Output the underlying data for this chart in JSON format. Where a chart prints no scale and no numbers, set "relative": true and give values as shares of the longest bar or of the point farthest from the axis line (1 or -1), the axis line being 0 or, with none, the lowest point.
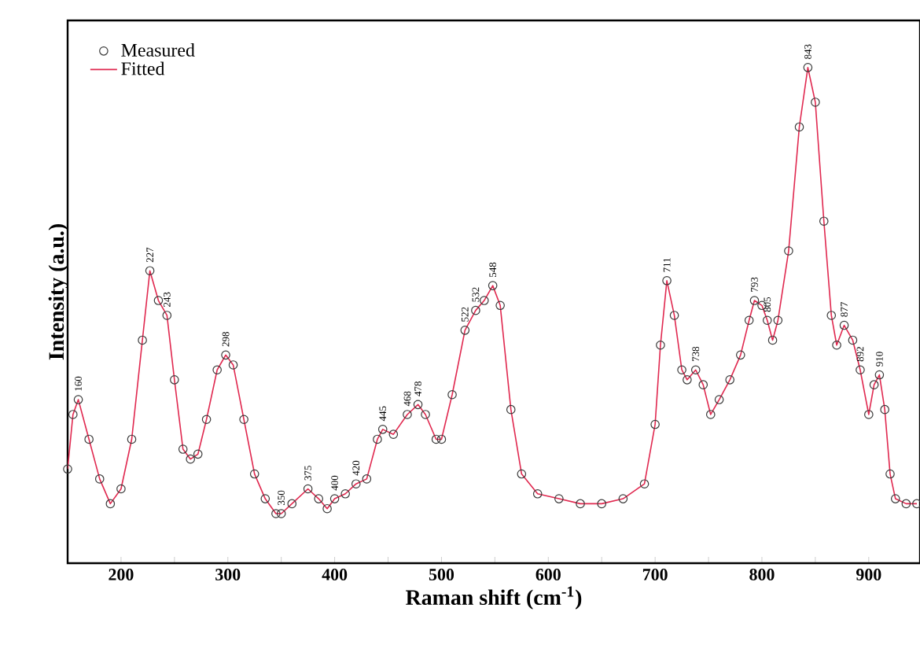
{
  "chart_data": {
    "type": "line",
    "relative": true,
    "xlabel": "Raman shift (cm$^{-1}$)",
    "ylabel": "Intensity (a.u.)",
    "xlim": [
      150,
      948
    ],
    "xticks": [
      200,
      {
        "value": 250,
        "label": null
      },
      300,
      {
        "value": 350,
        "label": null
      },
      400,
      {
        "value": 450,
        "label": null
      },
      500,
      {
        "value": 550,
        "label": null
      },
      600,
      {
        "value": 650,
        "label": null
      },
      700,
      {
        "value": 750,
        "label": null
      },
      800,
      {
        "value": 850,
        "label": null
      },
      900
    ],
    "legend": "top left",
    "series": [
      {
        "name": "Measured",
        "type": "scatter",
        "marker": "circle",
        "color": "#3a3a3a",
        "x": [
          150,
          155,
          160,
          170,
          180,
          190,
          200,
          210,
          220,
          227,
          235,
          243,
          250,
          258,
          265,
          272,
          280,
          290,
          298,
          305,
          315,
          325,
          335,
          345,
          350,
          360,
          375,
          385,
          393,
          400,
          410,
          420,
          430,
          440,
          445,
          455,
          468,
          478,
          485,
          495,
          500,
          510,
          522,
          532,
          540,
          548,
          555,
          565,
          575,
          590,
          610,
          630,
          650,
          670,
          690,
          700,
          705,
          711,
          718,
          725,
          730,
          738,
          745,
          752,
          760,
          770,
          780,
          788,
          793,
          800,
          805,
          810,
          815,
          825,
          835,
          843,
          850,
          858,
          865,
          870,
          877,
          885,
          892,
          900,
          905,
          910,
          915,
          920,
          925,
          935,
          945
        ],
        "values": [
          0.19,
          0.3,
          0.33,
          0.25,
          0.17,
          0.12,
          0.15,
          0.25,
          0.45,
          0.59,
          0.53,
          0.5,
          0.37,
          0.23,
          0.21,
          0.22,
          0.29,
          0.39,
          0.42,
          0.4,
          0.29,
          0.18,
          0.13,
          0.1,
          0.1,
          0.12,
          0.15,
          0.13,
          0.11,
          0.13,
          0.14,
          0.16,
          0.17,
          0.25,
          0.27,
          0.26,
          0.3,
          0.32,
          0.3,
          0.25,
          0.25,
          0.34,
          0.47,
          0.51,
          0.53,
          0.56,
          0.52,
          0.31,
          0.18,
          0.14,
          0.13,
          0.12,
          0.12,
          0.13,
          0.16,
          0.28,
          0.44,
          0.57,
          0.5,
          0.39,
          0.37,
          0.39,
          0.36,
          0.3,
          0.33,
          0.37,
          0.42,
          0.49,
          0.53,
          0.52,
          0.49,
          0.45,
          0.49,
          0.63,
          0.88,
          1,
          0.93,
          0.69,
          0.5,
          0.44,
          0.48,
          0.45,
          0.39,
          0.3,
          0.36,
          0.38,
          0.31,
          0.18,
          0.13,
          0.12,
          0.12
        ]
      },
      {
        "name": "Fitted",
        "type": "line",
        "marker": "none",
        "line_style": "solid",
        "color": "#e0284f",
        "x": [
          150,
          155,
          160,
          170,
          180,
          190,
          200,
          210,
          220,
          227,
          235,
          243,
          250,
          258,
          265,
          272,
          280,
          290,
          298,
          305,
          315,
          325,
          335,
          345,
          350,
          360,
          375,
          385,
          393,
          400,
          410,
          420,
          430,
          440,
          445,
          455,
          468,
          478,
          485,
          495,
          500,
          510,
          522,
          532,
          540,
          548,
          555,
          565,
          575,
          590,
          610,
          630,
          650,
          670,
          690,
          700,
          705,
          711,
          718,
          725,
          730,
          738,
          745,
          752,
          760,
          770,
          780,
          788,
          793,
          800,
          805,
          810,
          815,
          825,
          835,
          843,
          850,
          858,
          865,
          870,
          877,
          885,
          892,
          900,
          905,
          910,
          915,
          920,
          925,
          935,
          945
        ],
        "values": [
          0.19,
          0.3,
          0.33,
          0.25,
          0.17,
          0.12,
          0.15,
          0.25,
          0.45,
          0.59,
          0.53,
          0.5,
          0.37,
          0.23,
          0.21,
          0.22,
          0.29,
          0.39,
          0.42,
          0.4,
          0.29,
          0.18,
          0.13,
          0.1,
          0.1,
          0.12,
          0.15,
          0.13,
          0.11,
          0.13,
          0.14,
          0.16,
          0.17,
          0.25,
          0.27,
          0.26,
          0.3,
          0.32,
          0.3,
          0.25,
          0.25,
          0.34,
          0.47,
          0.51,
          0.53,
          0.56,
          0.52,
          0.31,
          0.18,
          0.14,
          0.13,
          0.12,
          0.12,
          0.13,
          0.16,
          0.28,
          0.44,
          0.57,
          0.5,
          0.39,
          0.37,
          0.39,
          0.36,
          0.3,
          0.33,
          0.37,
          0.42,
          0.49,
          0.53,
          0.52,
          0.49,
          0.45,
          0.49,
          0.63,
          0.88,
          1,
          0.93,
          0.69,
          0.5,
          0.44,
          0.48,
          0.45,
          0.39,
          0.3,
          0.36,
          0.38,
          0.31,
          0.18,
          0.13,
          0.12,
          0.12
        ]
      }
    ],
    "annotations": [
      {
        "text": "160",
        "x": 160,
        "y": 0.33
      },
      {
        "text": "227",
        "x": 227,
        "y": 0.59
      },
      {
        "text": "243",
        "x": 243,
        "y": 0.5
      },
      {
        "text": "298",
        "x": 298,
        "y": 0.42
      },
      {
        "text": "350",
        "x": 350,
        "y": 0.1
      },
      {
        "text": "375",
        "x": 375,
        "y": 0.15
      },
      {
        "text": "400",
        "x": 400,
        "y": 0.13
      },
      {
        "text": "420",
        "x": 420,
        "y": 0.16
      },
      {
        "text": "445",
        "x": 445,
        "y": 0.27
      },
      {
        "text": "468",
        "x": 468,
        "y": 0.3
      },
      {
        "text": "478",
        "x": 478,
        "y": 0.32
      },
      {
        "text": "522",
        "x": 522,
        "y": 0.47
      },
      {
        "text": "532",
        "x": 532,
        "y": 0.51
      },
      {
        "text": "548",
        "x": 548,
        "y": 0.56
      },
      {
        "text": "711",
        "x": 711,
        "y": 0.57
      },
      {
        "text": "738",
        "x": 738,
        "y": 0.39
      },
      {
        "text": "793",
        "x": 793,
        "y": 0.53
      },
      {
        "text": "805",
        "x": 805,
        "y": 0.49
      },
      {
        "text": "843",
        "x": 843,
        "y": 1
      },
      {
        "text": "877",
        "x": 877,
        "y": 0.48
      },
      {
        "text": "892",
        "x": 892,
        "y": 0.39
      },
      {
        "text": "910",
        "x": 910,
        "y": 0.38
      }
    ]
  }
}
